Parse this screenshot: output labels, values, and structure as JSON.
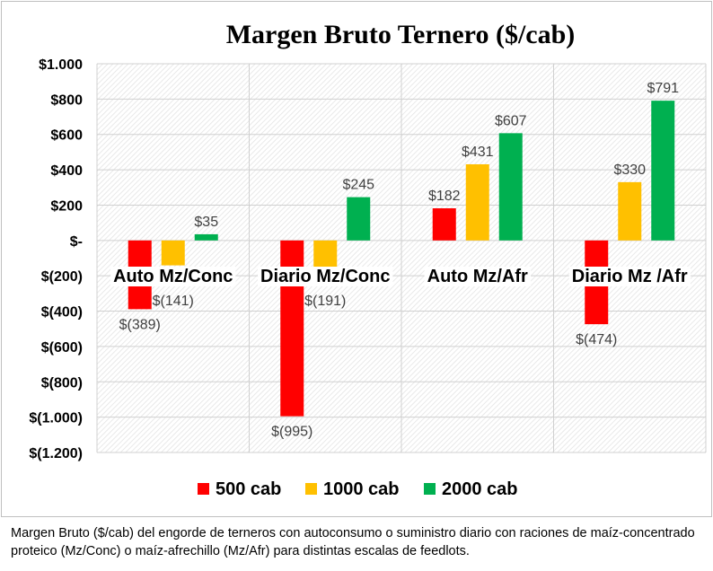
{
  "chart_data": {
    "type": "bar",
    "title": "Margen Bruto Ternero ($/cab)",
    "categories": [
      "Auto Mz/Conc",
      "Diario Mz/Conc",
      "Auto Mz/Afr",
      "Diario Mz /Afr"
    ],
    "series": [
      {
        "name": "500 cab",
        "color": "#ff0000",
        "values": [
          -389,
          -995,
          182,
          -474
        ],
        "labels": [
          "$(389)",
          "$(995)",
          "$182",
          "$(474)"
        ]
      },
      {
        "name": "1000 cab",
        "color": "#ffc000",
        "values": [
          -141,
          -191,
          431,
          330
        ],
        "labels": [
          "$(141)",
          "$(191)",
          "$431",
          "$330"
        ]
      },
      {
        "name": "2000 cab",
        "color": "#00b050",
        "values": [
          35,
          245,
          607,
          791
        ],
        "labels": [
          "$35",
          "$245",
          "$607",
          "$791"
        ]
      }
    ],
    "ylim": [
      -1200,
      1000
    ],
    "yticks": [
      1000,
      800,
      600,
      400,
      200,
      0,
      -200,
      -400,
      -600,
      -800,
      -1000,
      -1200
    ],
    "ytick_labels": [
      "$1.000",
      "$800",
      "$600",
      "$400",
      "$200",
      "$-",
      "$(200)",
      "$(400)",
      "$(600)",
      "$(800)",
      "$(1.000)",
      "$(1.200)"
    ],
    "xlabel": "",
    "ylabel": "",
    "grid": true,
    "legend": "bottom"
  },
  "caption": "Margen Bruto ($/cab) del engorde de terneros con autoconsumo o suministro diario con raciones de maíz-concentrado proteico (Mz/Conc) o maíz-afrechillo (Mz/Afr) para distintas escalas de feedlots."
}
